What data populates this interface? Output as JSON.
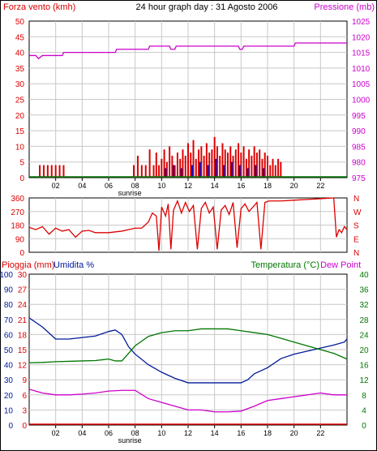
{
  "title": "24 hour graph day : 31 Agosto 2006",
  "colors": {
    "wind": "#dd0000",
    "gust_blue": "#0000cc",
    "pressure": "#cc00cc",
    "humidity": "#001a99",
    "temperature": "#007700",
    "dew_point": "#cc00cc",
    "rain": "#dd0000",
    "grid": "#c8c8c8",
    "frame": "#000000"
  },
  "x_ticks": [
    "02",
    "04",
    "06",
    "08",
    "10",
    "12",
    "14",
    "16",
    "18",
    "20",
    "22"
  ],
  "sunrise_label": "sunrise",
  "chart_data": [
    {
      "type": "bar",
      "panel": "wind_pressure",
      "ylabel_left": "Forza vento (kmh)",
      "ylabel_right": "Pressione (mb)",
      "ylim_left": [
        0,
        50
      ],
      "ylim_right": [
        975,
        1025
      ],
      "yticks_left": [
        "0",
        "5",
        "10",
        "15",
        "20",
        "25",
        "30",
        "35",
        "40",
        "45",
        "50"
      ],
      "yticks_right": [
        "975",
        "980",
        "985",
        "990",
        "995",
        "1000",
        "1005",
        "1010",
        "1015",
        "1020",
        "1025"
      ],
      "xlim": [
        0,
        24
      ],
      "wind_bars": [
        [
          0.8,
          4
        ],
        [
          1.1,
          4
        ],
        [
          1.4,
          4
        ],
        [
          1.7,
          4
        ],
        [
          2.0,
          4
        ],
        [
          2.3,
          4
        ],
        [
          2.6,
          4
        ],
        [
          7.9,
          4
        ],
        [
          8.2,
          7
        ],
        [
          8.5,
          4
        ],
        [
          8.8,
          4
        ],
        [
          9.1,
          9
        ],
        [
          9.4,
          4
        ],
        [
          9.6,
          8
        ],
        [
          9.8,
          4
        ],
        [
          10.0,
          6
        ],
        [
          10.2,
          9
        ],
        [
          10.4,
          5
        ],
        [
          10.6,
          10
        ],
        [
          10.8,
          7
        ],
        [
          11.0,
          4
        ],
        [
          11.2,
          8
        ],
        [
          11.4,
          6
        ],
        [
          11.6,
          9
        ],
        [
          11.8,
          7
        ],
        [
          12.0,
          11
        ],
        [
          12.2,
          8
        ],
        [
          12.4,
          12
        ],
        [
          12.6,
          6
        ],
        [
          12.8,
          9
        ],
        [
          13.0,
          10
        ],
        [
          13.2,
          7
        ],
        [
          13.4,
          11
        ],
        [
          13.6,
          8
        ],
        [
          13.8,
          9
        ],
        [
          14.0,
          13
        ],
        [
          14.2,
          10
        ],
        [
          14.4,
          7
        ],
        [
          14.6,
          11
        ],
        [
          14.8,
          9
        ],
        [
          15.0,
          8
        ],
        [
          15.2,
          10
        ],
        [
          15.4,
          7
        ],
        [
          15.6,
          9
        ],
        [
          15.8,
          11
        ],
        [
          16.0,
          8
        ],
        [
          16.2,
          10
        ],
        [
          16.4,
          6
        ],
        [
          16.6,
          9
        ],
        [
          16.8,
          7
        ],
        [
          17.0,
          10
        ],
        [
          17.2,
          8
        ],
        [
          17.4,
          9
        ],
        [
          17.6,
          6
        ],
        [
          17.8,
          8
        ],
        [
          18.0,
          7
        ],
        [
          18.2,
          4
        ],
        [
          18.4,
          6
        ],
        [
          18.6,
          4
        ],
        [
          18.8,
          6
        ],
        [
          19.0,
          5
        ]
      ],
      "gust_bars": [
        [
          10.3,
          3
        ],
        [
          10.9,
          4
        ],
        [
          11.5,
          3
        ],
        [
          12.3,
          4
        ],
        [
          12.9,
          5
        ],
        [
          13.5,
          4
        ],
        [
          14.1,
          6
        ],
        [
          14.7,
          4
        ],
        [
          15.3,
          5
        ],
        [
          15.9,
          4
        ],
        [
          16.5,
          3
        ],
        [
          17.1,
          4
        ],
        [
          17.7,
          3
        ]
      ],
      "pressure": [
        [
          0,
          1014
        ],
        [
          0.5,
          1014
        ],
        [
          0.7,
          1013
        ],
        [
          1.0,
          1014
        ],
        [
          2.5,
          1014
        ],
        [
          2.6,
          1015
        ],
        [
          6.5,
          1015
        ],
        [
          6.6,
          1016
        ],
        [
          9.0,
          1016
        ],
        [
          9.1,
          1017
        ],
        [
          10.6,
          1017
        ],
        [
          10.7,
          1016
        ],
        [
          11.0,
          1016
        ],
        [
          11.1,
          1017
        ],
        [
          15.8,
          1017
        ],
        [
          15.9,
          1016
        ],
        [
          16.1,
          1016
        ],
        [
          16.2,
          1017
        ],
        [
          20.0,
          1017
        ],
        [
          20.1,
          1018
        ],
        [
          24,
          1018
        ]
      ]
    },
    {
      "type": "line",
      "panel": "wind_direction",
      "ylabel_right_letters": [
        "N",
        "W",
        "S",
        "E",
        "N"
      ],
      "ylim": [
        0,
        360
      ],
      "yticks": [
        "360",
        "270",
        "180",
        "90",
        "0"
      ],
      "direction": [
        [
          0,
          165
        ],
        [
          0.5,
          150
        ],
        [
          1,
          170
        ],
        [
          1.5,
          120
        ],
        [
          2,
          160
        ],
        [
          2.5,
          140
        ],
        [
          3,
          150
        ],
        [
          3.5,
          100
        ],
        [
          4,
          140
        ],
        [
          4.5,
          145
        ],
        [
          5,
          130
        ],
        [
          6,
          130
        ],
        [
          7,
          140
        ],
        [
          7.5,
          150
        ],
        [
          8,
          160
        ],
        [
          8.5,
          160
        ],
        [
          9,
          200
        ],
        [
          9.3,
          260
        ],
        [
          9.6,
          240
        ],
        [
          9.8,
          10
        ],
        [
          10,
          300
        ],
        [
          10.3,
          240
        ],
        [
          10.5,
          320
        ],
        [
          10.7,
          20
        ],
        [
          10.9,
          280
        ],
        [
          11.2,
          340
        ],
        [
          11.5,
          260
        ],
        [
          11.8,
          330
        ],
        [
          12.1,
          270
        ],
        [
          12.4,
          310
        ],
        [
          12.7,
          20
        ],
        [
          13,
          290
        ],
        [
          13.3,
          330
        ],
        [
          13.6,
          260
        ],
        [
          13.9,
          300
        ],
        [
          14.2,
          20
        ],
        [
          14.5,
          280
        ],
        [
          14.8,
          310
        ],
        [
          15.1,
          250
        ],
        [
          15.4,
          330
        ],
        [
          15.7,
          30
        ],
        [
          16,
          290
        ],
        [
          16.3,
          320
        ],
        [
          16.6,
          270
        ],
        [
          16.9,
          300
        ],
        [
          17.2,
          330
        ],
        [
          17.5,
          20
        ],
        [
          17.8,
          330
        ],
        [
          18.1,
          340
        ],
        [
          18.4,
          340
        ],
        [
          19,
          340
        ],
        [
          20,
          345
        ],
        [
          21,
          350
        ],
        [
          22,
          355
        ],
        [
          23,
          360
        ],
        [
          23.2,
          100
        ],
        [
          23.4,
          150
        ],
        [
          23.6,
          130
        ],
        [
          23.8,
          170
        ],
        [
          24,
          150
        ]
      ]
    },
    {
      "type": "line",
      "panel": "rain_humidity_temp",
      "ylabel_rain": "Pioggia (mm)",
      "ylabel_humidity": "Umidita %",
      "ylabel_temp": "Temperatura (°C)",
      "ylabel_dew": "Dew Point",
      "yticks_humidity": [
        "0",
        "10",
        "20",
        "30",
        "40",
        "50",
        "60",
        "70",
        "80",
        "90",
        "100"
      ],
      "yticks_rain": [
        "0",
        "3",
        "6",
        "9",
        "12",
        "15",
        "18",
        "21",
        "24",
        "27",
        "30"
      ],
      "yticks_temp": [
        "0",
        "4",
        "8",
        "12",
        "16",
        "20",
        "24",
        "28",
        "32",
        "36",
        "40"
      ],
      "ylim_temp": [
        0,
        40
      ],
      "humidity": [
        [
          0,
          71
        ],
        [
          0.5,
          68
        ],
        [
          1,
          65
        ],
        [
          2,
          57
        ],
        [
          3,
          57
        ],
        [
          4,
          58
        ],
        [
          5,
          59
        ],
        [
          6,
          62
        ],
        [
          6.5,
          63
        ],
        [
          7,
          60
        ],
        [
          7.5,
          52
        ],
        [
          8,
          47
        ],
        [
          9,
          40
        ],
        [
          10,
          35
        ],
        [
          11,
          31
        ],
        [
          12,
          28
        ],
        [
          14,
          28
        ],
        [
          16,
          28
        ],
        [
          16.5,
          30
        ],
        [
          17,
          34
        ],
        [
          18,
          38
        ],
        [
          19,
          44
        ],
        [
          20,
          47
        ],
        [
          21,
          49
        ],
        [
          22,
          51
        ],
        [
          23,
          53
        ],
        [
          23.8,
          55
        ],
        [
          24,
          57
        ]
      ],
      "temperature": [
        [
          0,
          16.5
        ],
        [
          1,
          16.6
        ],
        [
          2,
          16.8
        ],
        [
          3,
          16.9
        ],
        [
          4,
          17
        ],
        [
          5,
          17.1
        ],
        [
          6,
          17.5
        ],
        [
          6.5,
          17
        ],
        [
          7,
          17
        ],
        [
          7.5,
          19
        ],
        [
          8,
          21
        ],
        [
          9,
          23.5
        ],
        [
          10,
          24.5
        ],
        [
          11,
          25
        ],
        [
          12,
          25
        ],
        [
          13,
          25.5
        ],
        [
          14,
          25.5
        ],
        [
          15,
          25.5
        ],
        [
          16,
          25
        ],
        [
          17,
          24.5
        ],
        [
          18,
          24
        ],
        [
          19,
          23
        ],
        [
          20,
          22
        ],
        [
          21,
          21
        ],
        [
          22,
          20
        ],
        [
          23,
          19
        ],
        [
          24,
          17.5
        ]
      ],
      "dew_point": [
        [
          0,
          9.5
        ],
        [
          1,
          8.5
        ],
        [
          2,
          8
        ],
        [
          3,
          8
        ],
        [
          4,
          8.2
        ],
        [
          5,
          8.5
        ],
        [
          6,
          9
        ],
        [
          7,
          9.2
        ],
        [
          8,
          9.2
        ],
        [
          9,
          7
        ],
        [
          10,
          6
        ],
        [
          11,
          5
        ],
        [
          12,
          4
        ],
        [
          13,
          4
        ],
        [
          14,
          3.5
        ],
        [
          15,
          3.5
        ],
        [
          16,
          3.7
        ],
        [
          17,
          5
        ],
        [
          18,
          6.5
        ],
        [
          19,
          7
        ],
        [
          20,
          7.5
        ],
        [
          21,
          8
        ],
        [
          22,
          8.5
        ],
        [
          23,
          8
        ],
        [
          24,
          8
        ]
      ],
      "rain": [
        [
          0,
          0
        ],
        [
          24,
          0
        ]
      ]
    }
  ]
}
